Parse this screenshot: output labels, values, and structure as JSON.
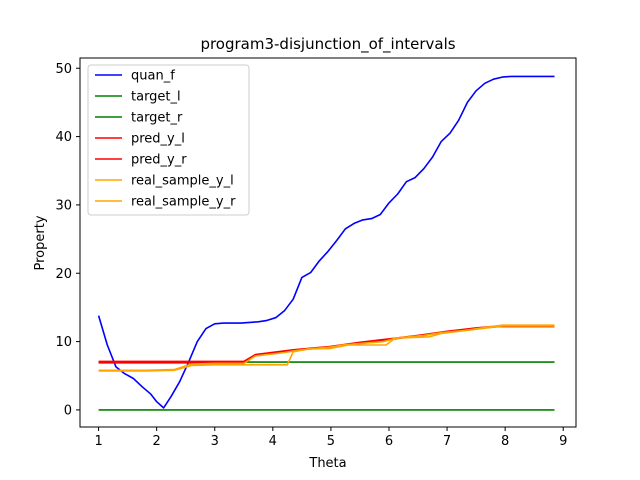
{
  "chart_data": {
    "type": "line",
    "title": "program3-disjunction_of_intervals",
    "xlabel": "Theta",
    "ylabel": "Property",
    "xlim": [
      0.68,
      9.22
    ],
    "ylim": [
      -2.5,
      51.5
    ],
    "xticks": [
      1,
      2,
      3,
      4,
      5,
      6,
      7,
      8,
      9
    ],
    "yticks": [
      0,
      10,
      20,
      30,
      40,
      50
    ],
    "grid": false,
    "legend_position": "top-left",
    "series": [
      {
        "name": "quan_f",
        "color": "#0000ff",
        "x": [
          1.0,
          1.15,
          1.3,
          1.45,
          1.6,
          1.75,
          1.9,
          2.0,
          2.12,
          2.25,
          2.4,
          2.55,
          2.7,
          2.85,
          3.0,
          3.15,
          3.3,
          3.45,
          3.6,
          3.75,
          3.9,
          4.05,
          4.2,
          4.35,
          4.5,
          4.65,
          4.8,
          4.95,
          5.1,
          5.25,
          5.4,
          5.55,
          5.7,
          5.85,
          6.0,
          6.15,
          6.3,
          6.45,
          6.6,
          6.75,
          6.9,
          7.05,
          7.2,
          7.35,
          7.5,
          7.65,
          7.8,
          7.95,
          8.1,
          8.25,
          8.4,
          8.55,
          8.85
        ],
        "values": [
          13.8,
          9.5,
          6.3,
          5.3,
          4.6,
          3.4,
          2.3,
          1.2,
          0.3,
          2.0,
          4.2,
          7.0,
          10.0,
          11.9,
          12.6,
          12.7,
          12.7,
          12.7,
          12.8,
          12.9,
          13.1,
          13.5,
          14.5,
          16.2,
          19.4,
          20.1,
          21.8,
          23.2,
          24.8,
          26.5,
          27.3,
          27.8,
          28.0,
          28.6,
          30.3,
          31.6,
          33.4,
          34.0,
          35.3,
          37.0,
          39.3,
          40.5,
          42.4,
          45.0,
          46.7,
          47.8,
          48.4,
          48.7,
          48.8,
          48.8,
          48.8,
          48.8,
          48.8
        ]
      },
      {
        "name": "target_l",
        "color": "#008000",
        "x": [
          1.0,
          8.85
        ],
        "values": [
          0.0,
          0.0
        ]
      },
      {
        "name": "target_r",
        "color": "#008000",
        "x": [
          1.0,
          8.85
        ],
        "values": [
          7.0,
          7.0
        ]
      },
      {
        "name": "pred_y_l",
        "color": "#ff0000",
        "x": [
          1.0,
          3.5,
          3.7,
          4.25,
          4.35,
          5.0,
          5.5,
          6.0,
          6.5,
          7.0,
          7.5,
          7.9,
          8.85
        ],
        "values": [
          6.9,
          6.9,
          8.0,
          8.6,
          8.7,
          9.2,
          9.8,
          10.3,
          10.8,
          11.4,
          11.9,
          12.2,
          12.2
        ]
      },
      {
        "name": "pred_y_r",
        "color": "#ff0000",
        "x": [
          1.0,
          3.5,
          3.7,
          4.25,
          4.35,
          5.0,
          5.5,
          6.0,
          6.5,
          7.0,
          7.5,
          7.9,
          8.85
        ],
        "values": [
          7.1,
          7.1,
          8.1,
          8.7,
          8.8,
          9.3,
          9.9,
          10.4,
          10.9,
          11.5,
          12.0,
          12.3,
          12.3
        ]
      },
      {
        "name": "real_sample_y_l",
        "color": "#ffa500",
        "x": [
          1.0,
          1.8,
          2.3,
          2.6,
          3.0,
          3.5,
          3.7,
          4.0,
          4.2,
          4.35,
          4.6,
          5.0,
          5.2,
          5.5,
          5.9,
          6.0,
          6.1,
          6.6,
          6.9,
          7.3,
          7.6,
          7.95,
          8.85
        ],
        "values": [
          5.8,
          5.8,
          5.9,
          6.7,
          6.8,
          6.8,
          7.9,
          8.2,
          8.4,
          8.6,
          8.9,
          9.2,
          9.5,
          9.7,
          10.0,
          10.2,
          10.5,
          10.9,
          11.3,
          11.6,
          12.0,
          12.4,
          12.4
        ]
      },
      {
        "name": "real_sample_y_r",
        "color": "#ffa500",
        "x": [
          1.0,
          1.8,
          2.3,
          2.6,
          3.0,
          3.5,
          4.0,
          4.25,
          4.35,
          4.6,
          5.0,
          5.3,
          5.6,
          5.95,
          6.1,
          6.7,
          6.9,
          7.3,
          7.6,
          7.95,
          8.85
        ],
        "values": [
          5.7,
          5.7,
          5.8,
          6.5,
          6.6,
          6.6,
          6.6,
          6.6,
          8.5,
          8.9,
          9.0,
          9.5,
          9.5,
          9.5,
          10.5,
          10.7,
          11.2,
          11.6,
          11.9,
          12.3,
          12.3
        ]
      }
    ]
  }
}
